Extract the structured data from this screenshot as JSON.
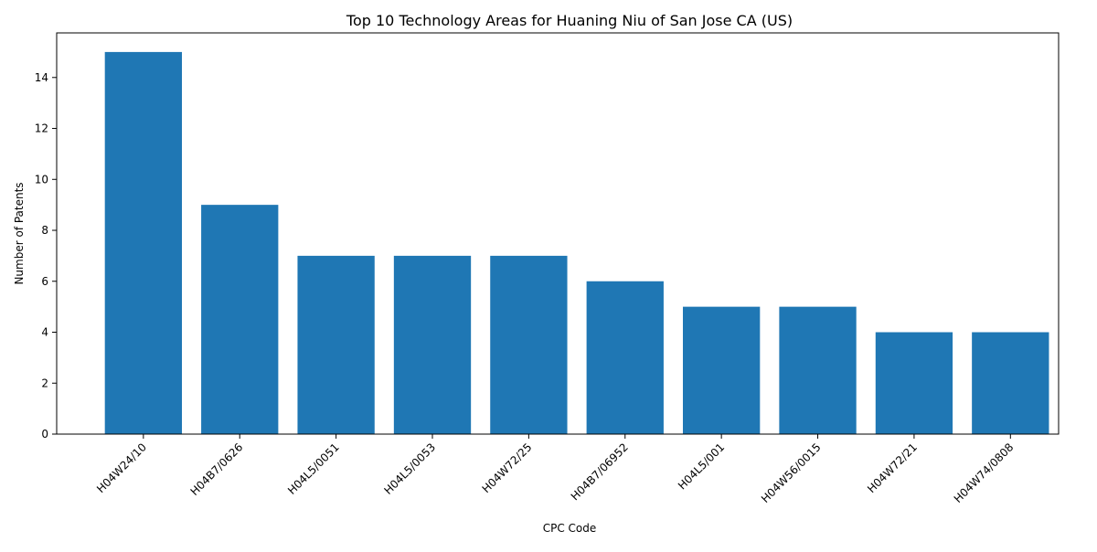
{
  "chart_data": {
    "type": "bar",
    "title": "Top 10 Technology Areas for Huaning Niu of San Jose CA (US)",
    "xlabel": "CPC Code",
    "ylabel": "Number of Patents",
    "categories": [
      "H04W24/10",
      "H04B7/0626",
      "H04L5/0051",
      "H04L5/0053",
      "H04W72/25",
      "H04B7/06952",
      "H04L5/001",
      "H04W56/0015",
      "H04W72/21",
      "H04W74/0808"
    ],
    "values": [
      15,
      9,
      7,
      7,
      7,
      6,
      5,
      5,
      4,
      4
    ],
    "ylim": [
      0,
      15.75
    ],
    "yticks": [
      0,
      2,
      4,
      6,
      8,
      10,
      12,
      14
    ],
    "grid": false,
    "bar_color": "#1f77b4"
  }
}
